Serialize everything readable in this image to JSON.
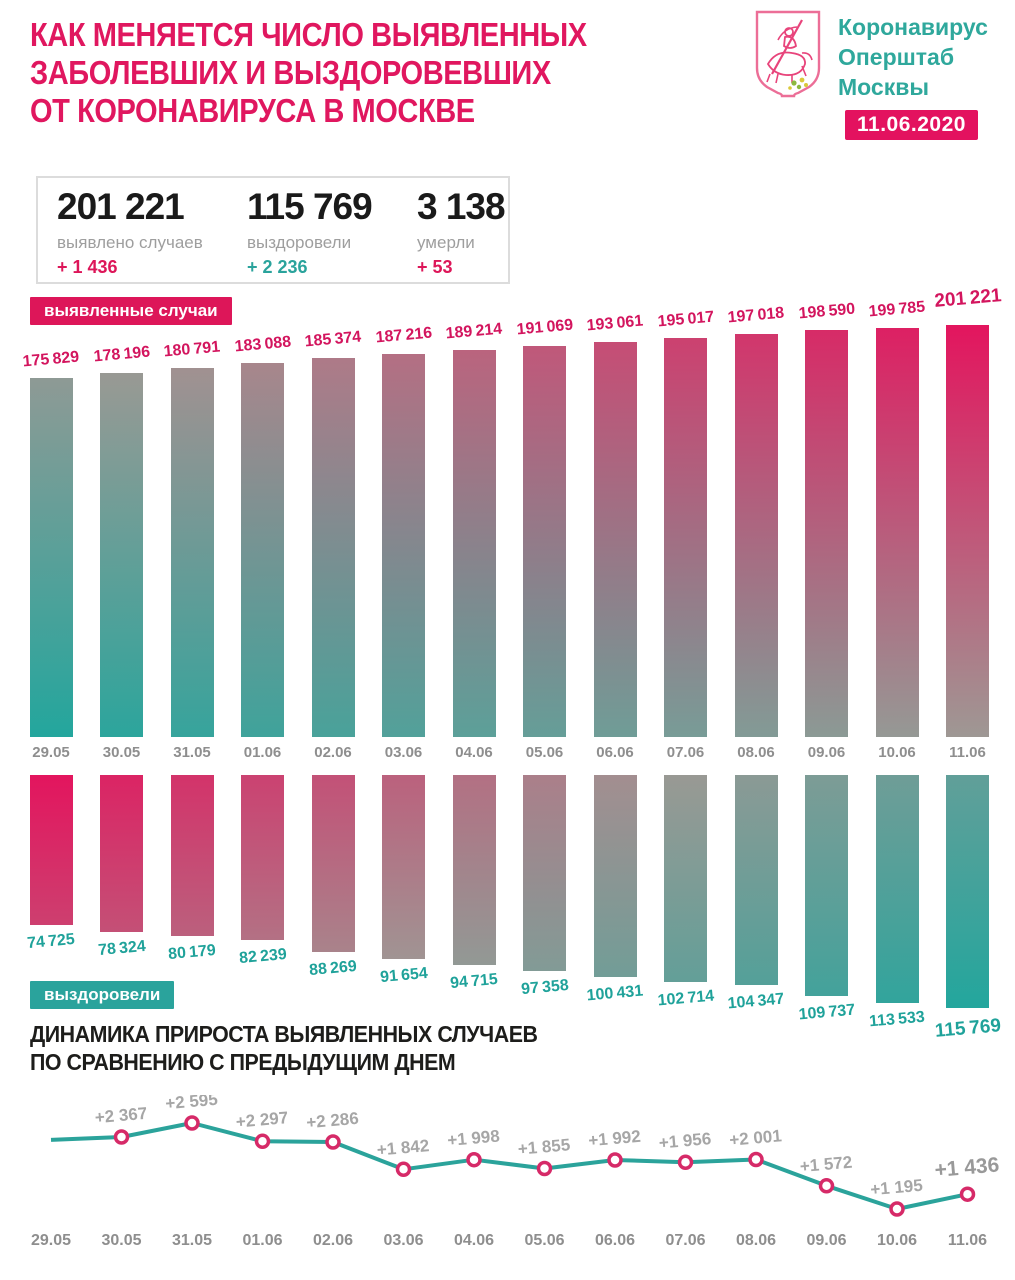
{
  "header": {
    "title_lines": [
      "КАК МЕНЯЕТСЯ ЧИСЛО ВЫЯВЛЕННЫХ",
      "ЗАБОЛЕВШИХ И ВЫЗДОРОВЕВШИХ",
      "ОТ КОРОНАВИРУСА В МОСКВЕ"
    ],
    "logo": {
      "emblem": "moscow-coat-of-arms",
      "org_lines": [
        "Коронавирус",
        "Оперштаб",
        "Москвы"
      ]
    },
    "date_badge": "11.06.2020"
  },
  "stats": [
    {
      "value": 201221,
      "value_display": "201 221",
      "label": "выявлено случаев",
      "delta_display": "+ 1 436",
      "delta_color": "#DD1659"
    },
    {
      "value": 115769,
      "value_display": "115 769",
      "label": "выздоровели",
      "delta_display": "+ 2 236",
      "delta_color": "#2AA39C"
    },
    {
      "value": 3138,
      "value_display": "3 138",
      "label": "умерли",
      "delta_display": "+ 53",
      "delta_color": "#DD1659"
    }
  ],
  "chart_data": [
    {
      "type": "bar",
      "name": "detected-cases",
      "title": "выявленные случаи",
      "categories": [
        "29.05",
        "30.05",
        "31.05",
        "01.06",
        "02.06",
        "03.06",
        "04.06",
        "05.06",
        "06.06",
        "07.06",
        "08.06",
        "09.06",
        "10.06",
        "11.06"
      ],
      "values": [
        175829,
        178196,
        180791,
        183088,
        185374,
        187216,
        189214,
        191069,
        193061,
        195017,
        197018,
        198590,
        199785,
        201221
      ],
      "bar_direction": "up",
      "baseline_truncated": true,
      "value_label_color": "#D3155E",
      "gradient": {
        "teal": "#23A69D",
        "mid": "#9E9894",
        "crimson": "#E3155E",
        "direction": "teal bottom-left to crimson top-right"
      }
    },
    {
      "type": "bar",
      "name": "recovered",
      "title": "выздоровели",
      "categories": [
        "29.05",
        "30.05",
        "31.05",
        "01.06",
        "02.06",
        "03.06",
        "04.06",
        "05.06",
        "06.06",
        "07.06",
        "08.06",
        "09.06",
        "10.06",
        "11.06"
      ],
      "values": [
        74725,
        78324,
        80179,
        82239,
        88269,
        91654,
        94715,
        97358,
        100431,
        102714,
        104347,
        109737,
        113533,
        115769
      ],
      "bar_direction": "down",
      "baseline_truncated": true,
      "value_label_color": "#1FA29A",
      "gradient": {
        "teal": "#23A69D",
        "mid": "#9E9894",
        "crimson": "#E3155E",
        "direction": "crimson top-left to teal bottom-right"
      }
    },
    {
      "type": "line",
      "name": "daily-increase",
      "title_lines": [
        "ДИНАМИКА ПРИРОСТА ВЫЯВЛЕННЫХ СЛУЧАЕВ",
        "ПО СРАВНЕНИЮ С ПРЕДЫДУЩИМ ДНЕМ"
      ],
      "categories": [
        "29.05",
        "30.05",
        "31.05",
        "01.06",
        "02.06",
        "03.06",
        "04.06",
        "05.06",
        "06.06",
        "07.06",
        "08.06",
        "09.06",
        "10.06",
        "11.06"
      ],
      "values": [
        2320,
        2367,
        2595,
        2297,
        2286,
        1842,
        1998,
        1855,
        1992,
        1956,
        2001,
        1572,
        1195,
        1436
      ],
      "point_labels": [
        "",
        "+2 367",
        "+2 595",
        "+2 297",
        "+2 286",
        "+1 842",
        "+1 998",
        "+1 855",
        "+1 992",
        "+1 956",
        "+2 001",
        "+1 572",
        "+1 195",
        "+1 436"
      ],
      "line_color": "#2BA39B",
      "dot_color": "#D62A68",
      "label_color": "#A6A6A6",
      "legend_position": "none",
      "grid": false
    }
  ],
  "colors": {
    "crimson": "#E0175F",
    "teal": "#2AA79E",
    "mid_gray": "#9E9894",
    "axis_gray": "#8E8E8E",
    "stat_number": "#1A1A1A",
    "stat_label_gray": "#9E9E9E",
    "box_border": "#DCDCDC",
    "background": "#FFFFFF"
  }
}
